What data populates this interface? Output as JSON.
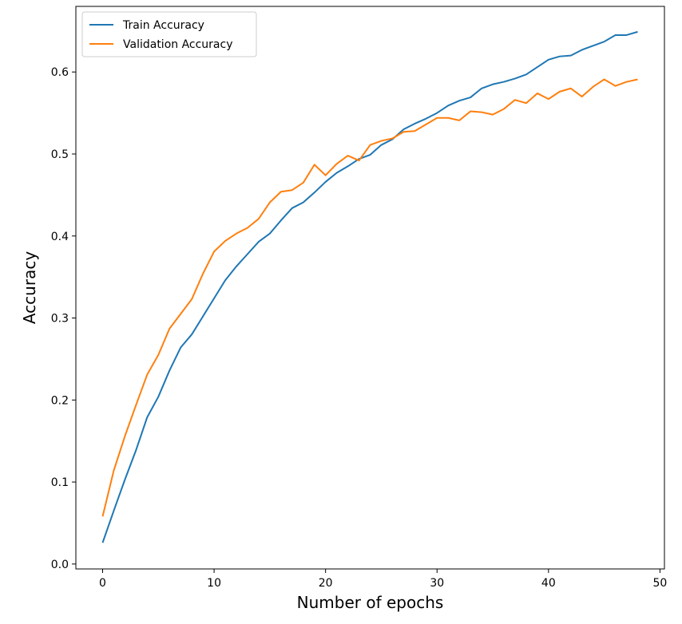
{
  "chart_data": {
    "type": "line",
    "title": "",
    "xlabel": "Number of epochs",
    "ylabel": "Accuracy",
    "xlim": [
      -2.4,
      50.4
    ],
    "ylim": [
      -0.006,
      0.68
    ],
    "xticks": [
      0,
      10,
      20,
      30,
      40,
      50
    ],
    "yticks": [
      0.0,
      0.1,
      0.2,
      0.3,
      0.4,
      0.5,
      0.6
    ],
    "xtick_labels": [
      "0",
      "10",
      "20",
      "30",
      "40",
      "50"
    ],
    "ytick_labels": [
      "0.0",
      "0.1",
      "0.2",
      "0.3",
      "0.4",
      "0.5",
      "0.6"
    ],
    "grid": false,
    "legend_position": "upper-left",
    "x": [
      0,
      1,
      2,
      3,
      4,
      5,
      6,
      7,
      8,
      9,
      10,
      11,
      12,
      13,
      14,
      15,
      16,
      17,
      18,
      19,
      20,
      21,
      22,
      23,
      24,
      25,
      26,
      27,
      28,
      29,
      30,
      31,
      32,
      33,
      34,
      35,
      36,
      37,
      38,
      39,
      40,
      41,
      42,
      43,
      44,
      45,
      46,
      47,
      48
    ],
    "series": [
      {
        "name": "Train Accuracy",
        "color": "#1f77b4",
        "values": [
          0.026,
          0.065,
          0.103,
          0.139,
          0.179,
          0.204,
          0.236,
          0.264,
          0.28,
          0.302,
          0.324,
          0.346,
          0.363,
          0.378,
          0.393,
          0.403,
          0.419,
          0.434,
          0.441,
          0.453,
          0.466,
          0.477,
          0.485,
          0.494,
          0.499,
          0.511,
          0.518,
          0.53,
          0.537,
          0.543,
          0.55,
          0.559,
          0.565,
          0.569,
          0.58,
          0.585,
          0.588,
          0.592,
          0.597,
          0.606,
          0.615,
          0.619,
          0.62,
          0.627,
          0.632,
          0.637,
          0.645,
          0.645,
          0.649
        ]
      },
      {
        "name": "Validation Accuracy",
        "color": "#ff7f0e",
        "values": [
          0.058,
          0.114,
          0.156,
          0.194,
          0.231,
          0.255,
          0.287,
          0.305,
          0.323,
          0.354,
          0.381,
          0.394,
          0.403,
          0.41,
          0.421,
          0.441,
          0.454,
          0.456,
          0.465,
          0.487,
          0.474,
          0.488,
          0.498,
          0.492,
          0.511,
          0.516,
          0.519,
          0.527,
          0.528,
          0.536,
          0.544,
          0.544,
          0.541,
          0.552,
          0.551,
          0.548,
          0.555,
          0.566,
          0.562,
          0.574,
          0.567,
          0.576,
          0.58,
          0.57,
          0.582,
          0.591,
          0.583,
          0.588,
          0.591
        ]
      }
    ]
  }
}
